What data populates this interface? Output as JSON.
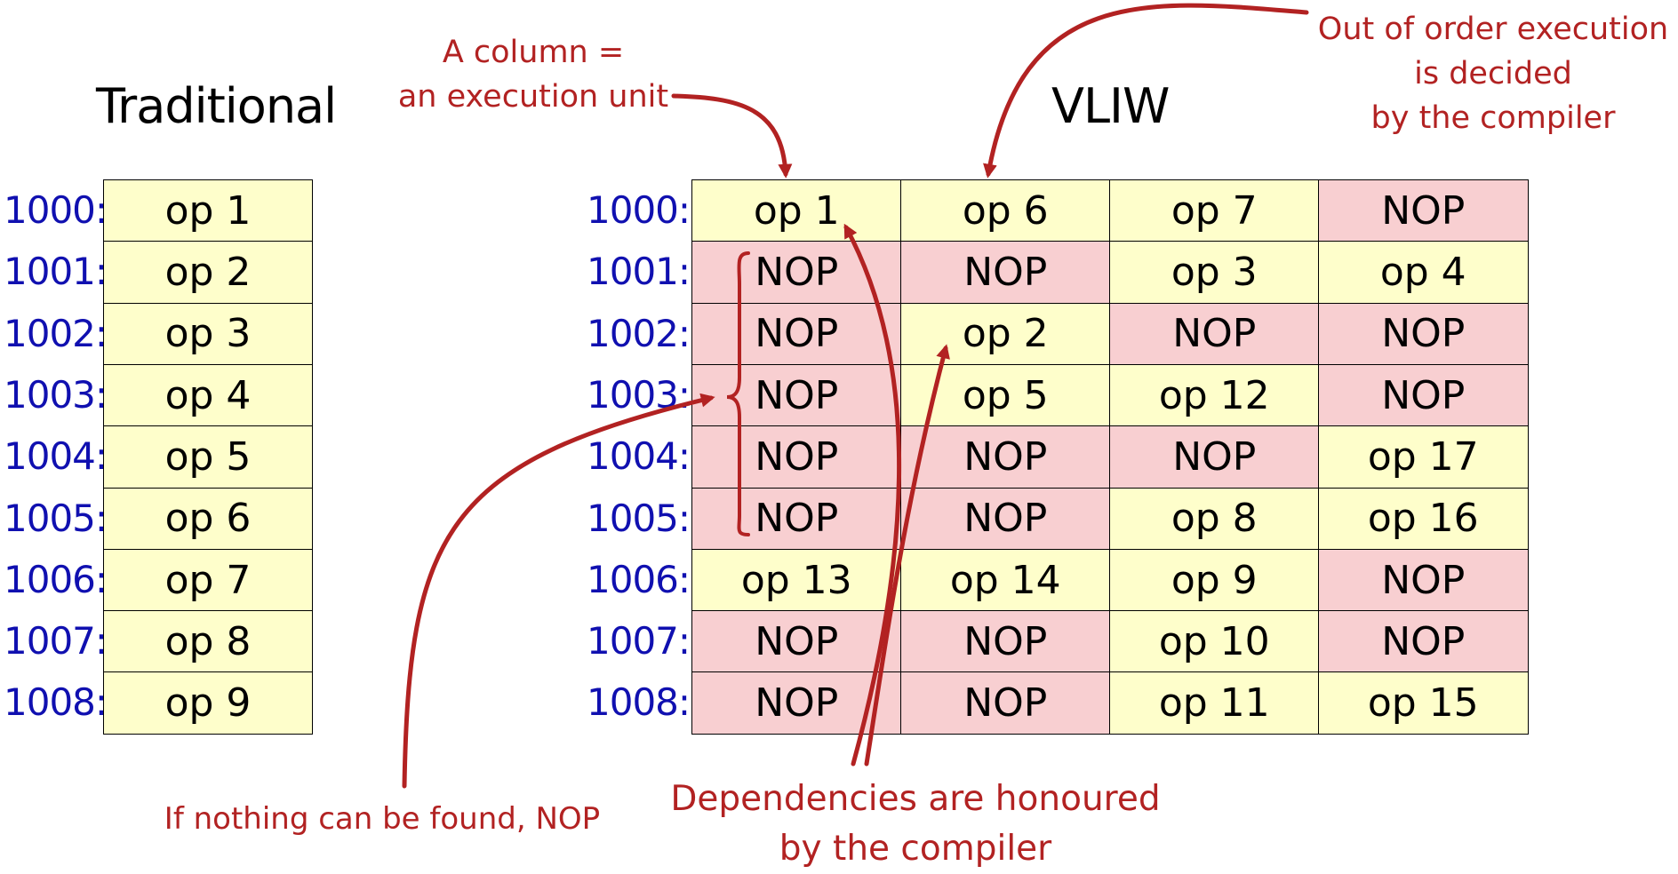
{
  "headings": {
    "traditional": "Traditional",
    "vliw": "VLIW"
  },
  "annotations": {
    "column_line1": "A column =",
    "column_line2": "an execution unit",
    "ooo_line1": "Out of order execution",
    "ooo_line2": "is decided",
    "ooo_line3": "by the compiler",
    "nop_note": "If nothing can be found, NOP",
    "deps_line1": "Dependencies are honoured",
    "deps_line2": "by the compiler"
  },
  "colors": {
    "op": "#fefecb",
    "nop": "#f8cfd1",
    "address": "#1010b0",
    "annotation": "#b22222"
  },
  "addresses": [
    "1000:",
    "1001:",
    "1002:",
    "1003:",
    "1004:",
    "1005:",
    "1006:",
    "1007:",
    "1008:"
  ],
  "traditional": [
    "op 1",
    "op 2",
    "op 3",
    "op 4",
    "op 5",
    "op 6",
    "op 7",
    "op 8",
    "op 9"
  ],
  "vliw": [
    [
      "op 1",
      "op 6",
      "op 7",
      "NOP"
    ],
    [
      "NOP",
      "NOP",
      "op 3",
      "op 4"
    ],
    [
      "NOP",
      "op 2",
      "NOP",
      "NOP"
    ],
    [
      "NOP",
      "op 5",
      "op 12",
      "NOP"
    ],
    [
      "NOP",
      "NOP",
      "NOP",
      "op 17"
    ],
    [
      "NOP",
      "NOP",
      "op 8",
      "op 16"
    ],
    [
      "op 13",
      "op 14",
      "op 9",
      "NOP"
    ],
    [
      "NOP",
      "NOP",
      "op 10",
      "NOP"
    ],
    [
      "NOP",
      "NOP",
      "op 11",
      "op 15"
    ]
  ]
}
